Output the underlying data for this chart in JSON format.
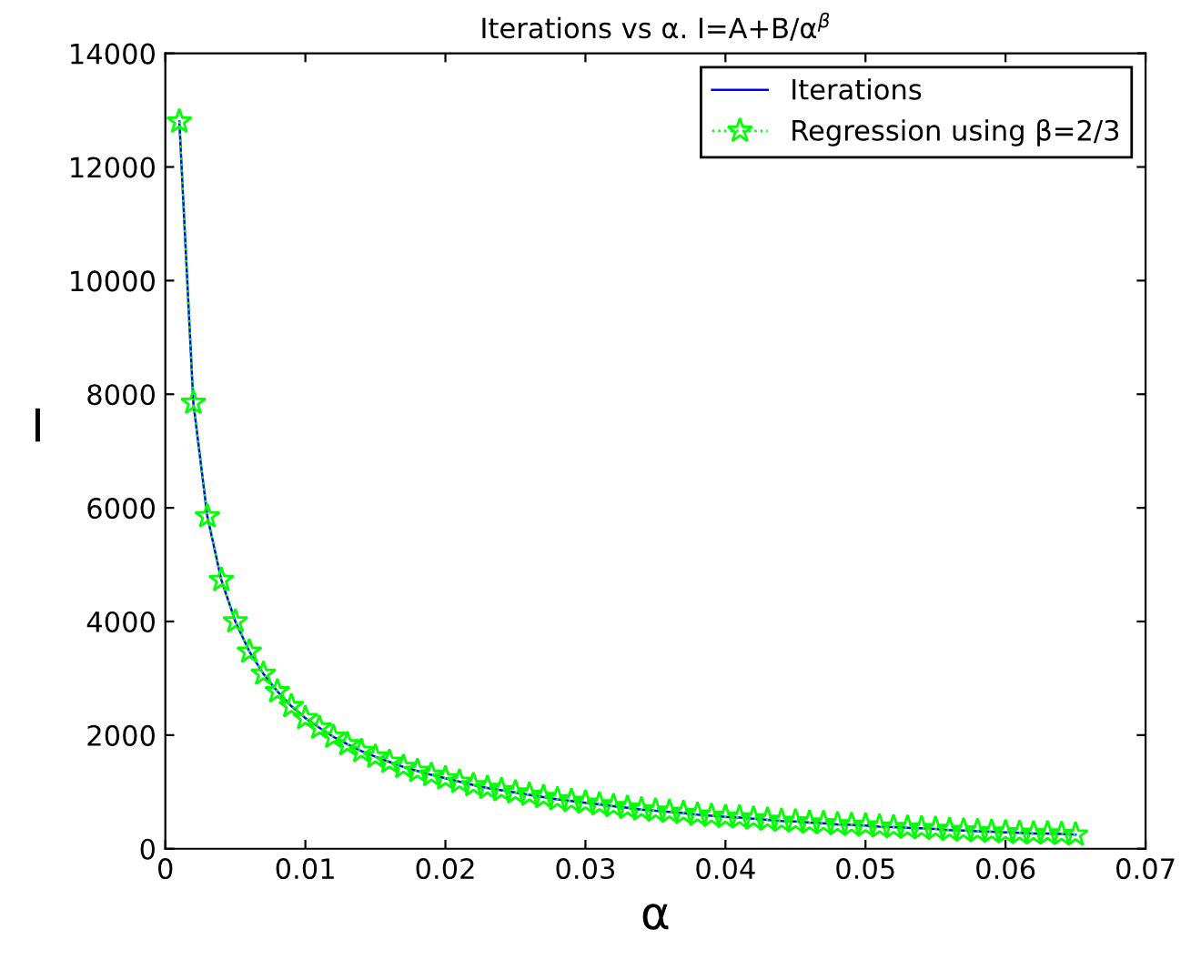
{
  "chart_data": {
    "type": "line",
    "title": "Iterations vs α. I=A+B/α$^{β}$",
    "xlabel": "α",
    "ylabel": "I",
    "x": [
      0.001,
      0.002,
      0.003,
      0.004,
      0.005,
      0.006,
      0.007,
      0.008,
      0.009,
      0.01,
      0.011,
      0.012,
      0.013,
      0.014,
      0.015,
      0.016,
      0.017,
      0.018,
      0.019,
      0.02,
      0.021,
      0.022,
      0.023,
      0.024,
      0.025,
      0.026,
      0.027,
      0.028,
      0.029,
      0.03,
      0.031,
      0.032,
      0.033,
      0.034,
      0.035,
      0.036,
      0.037,
      0.038,
      0.039,
      0.04,
      0.041,
      0.042,
      0.043,
      0.044,
      0.045,
      0.046,
      0.047,
      0.048,
      0.049,
      0.05,
      0.051,
      0.052,
      0.053,
      0.054,
      0.055,
      0.056,
      0.057,
      0.058,
      0.059,
      0.06,
      0.061,
      0.062,
      0.063,
      0.064,
      0.065
    ],
    "series": [
      {
        "name": "Iterations",
        "color": "#0000ff",
        "marker": "none",
        "line_style": "solid",
        "values": [
          12800,
          7850,
          5850,
          4730,
          4000,
          3470,
          3080,
          2770,
          2510,
          2300,
          2130,
          1970,
          1840,
          1720,
          1620,
          1530,
          1440,
          1370,
          1300,
          1240,
          1180,
          1120,
          1070,
          1030,
          990,
          950,
          910,
          870,
          840,
          810,
          780,
          750,
          720,
          690,
          670,
          650,
          630,
          600,
          580,
          560,
          550,
          530,
          510,
          490,
          480,
          460,
          450,
          430,
          420,
          410,
          390,
          380,
          370,
          360,
          350,
          330,
          320,
          310,
          300,
          290,
          280,
          270,
          270,
          260,
          250
        ]
      },
      {
        "name": "Regression using β=2/3",
        "color": "#00ff00",
        "marker": "star",
        "line_style": "dotted",
        "values": [
          12800,
          7850,
          5850,
          4730,
          4000,
          3470,
          3080,
          2770,
          2510,
          2300,
          2130,
          1970,
          1840,
          1720,
          1620,
          1530,
          1440,
          1370,
          1300,
          1240,
          1180,
          1120,
          1070,
          1030,
          990,
          950,
          910,
          870,
          840,
          810,
          780,
          750,
          720,
          690,
          670,
          650,
          630,
          600,
          580,
          560,
          550,
          530,
          510,
          490,
          480,
          460,
          450,
          430,
          420,
          410,
          390,
          380,
          370,
          360,
          350,
          330,
          320,
          310,
          300,
          290,
          280,
          270,
          270,
          260,
          250
        ]
      }
    ],
    "xlim": [
      0,
      0.07
    ],
    "xticks": [
      0,
      0.01,
      0.02,
      0.03,
      0.04,
      0.05,
      0.06,
      0.07
    ],
    "ylim": [
      0,
      14000
    ],
    "yticks": [
      0,
      2000,
      4000,
      6000,
      8000,
      10000,
      12000,
      14000
    ],
    "grid": false,
    "legend": "top right"
  }
}
